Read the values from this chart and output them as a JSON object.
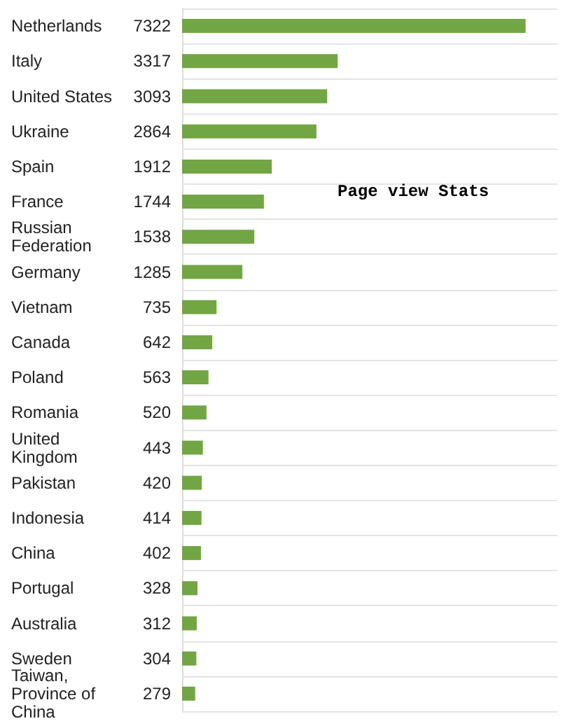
{
  "chart_data": {
    "type": "bar",
    "orientation": "horizontal",
    "title": "Page view Stats",
    "categories": [
      "Netherlands",
      "Italy",
      "United States",
      "Ukraine",
      "Spain",
      "France",
      "Russian Federation",
      "Germany",
      "Vietnam",
      "Canada",
      "Poland",
      "Romania",
      "United Kingdom",
      "Pakistan",
      "Indonesia",
      "China",
      "Portugal",
      "Australia",
      "Sweden",
      "Taiwan, Province of China"
    ],
    "values": [
      7322,
      3317,
      3093,
      2864,
      1912,
      1744,
      1538,
      1285,
      735,
      642,
      563,
      520,
      443,
      420,
      414,
      402,
      328,
      312,
      304,
      279
    ],
    "color": "#72a644",
    "data_labels": true,
    "grid": "y"
  }
}
